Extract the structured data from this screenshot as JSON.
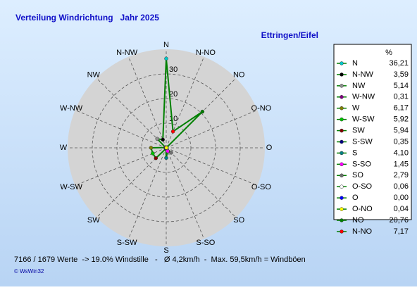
{
  "chart_data": {
    "type": "polar",
    "title": "Verteilung Windrichtung   Jahr 2025",
    "subtitle": "Ettringen/Eifel",
    "unit_label": "%",
    "categories": [
      "N",
      "N-NW",
      "NW",
      "W-NW",
      "W",
      "W-SW",
      "SW",
      "S-SW",
      "S",
      "S-SO",
      "SO",
      "O-SO",
      "O",
      "O-NO",
      "NO",
      "N-NO"
    ],
    "values": [
      36.21,
      3.59,
      5.14,
      0.31,
      6.17,
      5.92,
      5.94,
      0.35,
      4.1,
      1.45,
      2.79,
      0.06,
      0.0,
      0.04,
      20.76,
      7.17
    ],
    "value_labels": [
      "36,21",
      "3,59",
      "5,14",
      "0,31",
      "6,17",
      "5,92",
      "5,94",
      "0,35",
      "4,10",
      "1,45",
      "2,79",
      "0,06",
      "0,00",
      "0,04",
      "20,76",
      "7,17"
    ],
    "marker_colors": [
      "#00c8c8",
      "#000000",
      "#909090",
      "#800080",
      "#808000",
      "#00c000",
      "#800000",
      "#000080",
      "#008080",
      "#ff00ff",
      "#707070",
      "#ffffff",
      "#0000ff",
      "#ffff00",
      "#008000",
      "#ff0000"
    ],
    "line_color": "#008000",
    "rlim": [
      0,
      40
    ],
    "rticks": [
      10,
      20,
      30
    ],
    "grid": true,
    "footer": "7166 / 1679 Werte  -> 19.0% Windstille   -   Ø 4,2km/h  -  Max. 59,5km/h = Windböen",
    "credit": "© WsWin32"
  }
}
